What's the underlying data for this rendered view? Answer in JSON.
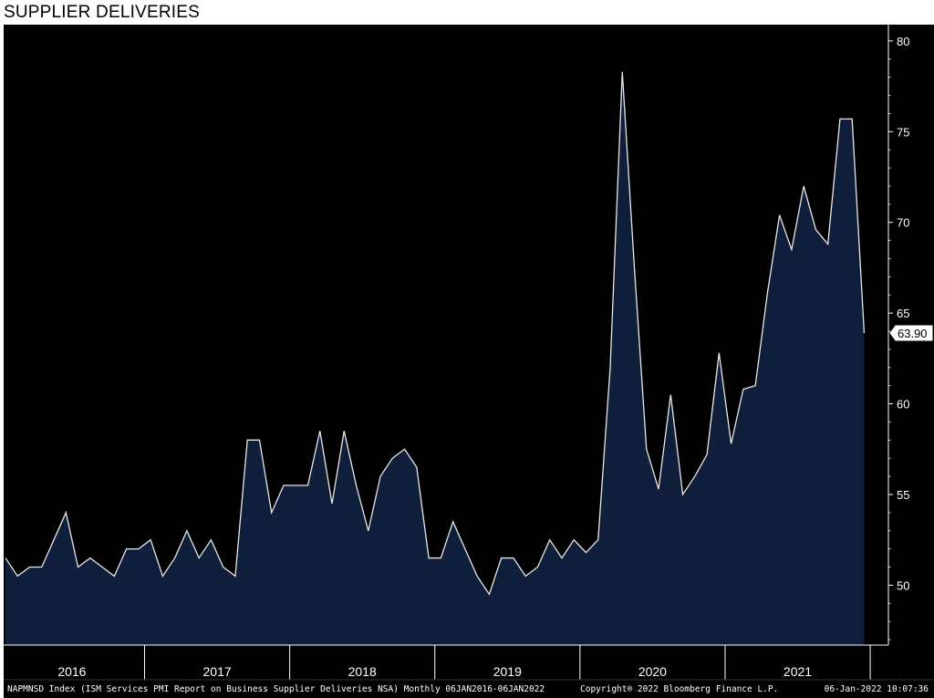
{
  "title": "SUPPLIER DELIVERIES",
  "footer": {
    "left": "NAPMNSD Index (ISM Services PMI Report on Business Supplier Deliveries NSA) Monthly 06JAN2016-06JAN2022",
    "center": "Copyright® 2022 Bloomberg Finance L.P.",
    "right": "06-Jan-2022 10:07:36"
  },
  "colors": {
    "background": "#000000",
    "area_fill": "#0e1e3b",
    "line": "#e8e8e8",
    "axis_text": "#ffffff"
  },
  "chart_data": {
    "type": "area",
    "title": "SUPPLIER DELIVERIES",
    "xlabel": "",
    "ylabel": "",
    "ylim": [
      46.7,
      80.9
    ],
    "y_ticks": [
      50,
      55,
      60,
      65,
      70,
      75,
      80
    ],
    "x_ticks": [
      "2016",
      "2017",
      "2018",
      "2019",
      "2020",
      "2021"
    ],
    "grid": false,
    "last_value_label": "63.90",
    "series": [
      {
        "x": [
          "2016-01",
          "2016-02",
          "2016-03",
          "2016-04",
          "2016-05",
          "2016-06",
          "2016-07",
          "2016-08",
          "2016-09",
          "2016-10",
          "2016-11",
          "2016-12",
          "2017-01",
          "2017-02",
          "2017-03",
          "2017-04",
          "2017-05",
          "2017-06",
          "2017-07",
          "2017-08",
          "2017-09",
          "2017-10",
          "2017-11",
          "2017-12",
          "2018-01",
          "2018-02",
          "2018-03",
          "2018-04",
          "2018-05",
          "2018-06",
          "2018-07",
          "2018-08",
          "2018-09",
          "2018-10",
          "2018-11",
          "2018-12",
          "2019-01",
          "2019-02",
          "2019-03",
          "2019-04",
          "2019-05",
          "2019-06",
          "2019-07",
          "2019-08",
          "2019-09",
          "2019-10",
          "2019-11",
          "2019-12",
          "2020-01",
          "2020-02",
          "2020-03",
          "2020-04",
          "2020-05",
          "2020-06",
          "2020-07",
          "2020-08",
          "2020-09",
          "2020-10",
          "2020-11",
          "2020-12",
          "2021-01",
          "2021-02",
          "2021-03",
          "2021-04",
          "2021-05",
          "2021-06",
          "2021-07",
          "2021-08",
          "2021-09",
          "2021-10",
          "2021-11",
          "2021-12"
        ],
        "values": [
          51.5,
          50.5,
          51.0,
          51.0,
          52.5,
          54.0,
          51.0,
          51.5,
          51.0,
          50.5,
          52.0,
          52.0,
          52.5,
          50.5,
          51.5,
          53.0,
          51.5,
          52.5,
          51.0,
          50.5,
          58.0,
          58.0,
          54.0,
          55.5,
          55.5,
          55.5,
          58.5,
          54.5,
          58.5,
          55.5,
          53.0,
          56.0,
          57.0,
          57.5,
          56.5,
          51.5,
          51.5,
          53.5,
          52.0,
          50.5,
          49.5,
          51.5,
          51.5,
          50.5,
          51.0,
          52.5,
          51.5,
          52.5,
          51.8,
          52.5,
          62.0,
          78.3,
          67.5,
          57.5,
          55.3,
          60.5,
          55.0,
          56.0,
          57.2,
          62.8,
          57.8,
          60.8,
          61.0,
          66.1,
          70.4,
          68.5,
          72.0,
          69.6,
          68.8,
          75.7,
          75.7,
          63.9
        ]
      }
    ]
  }
}
